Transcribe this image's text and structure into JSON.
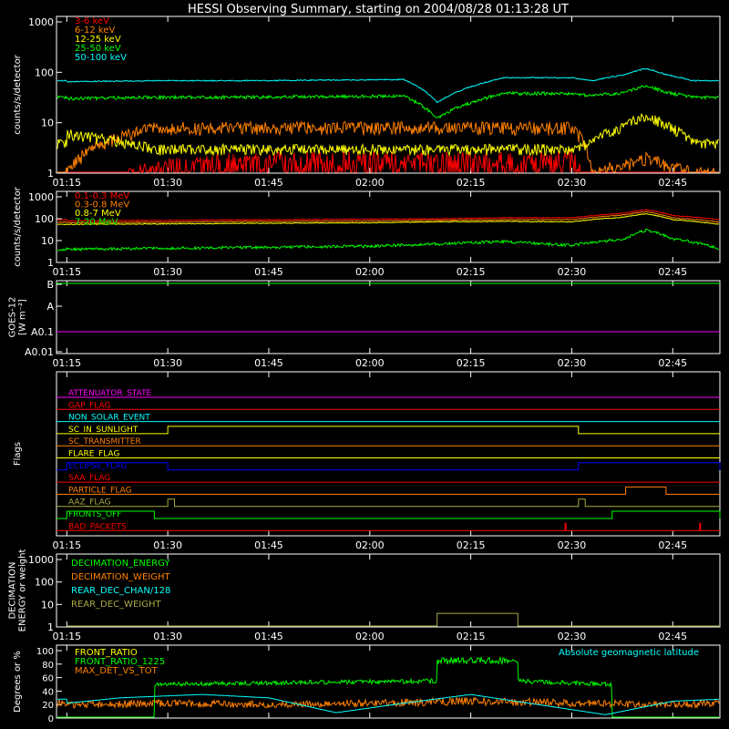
{
  "title": "HESSI Observing Summary, starting on 2004/08/28 01:13:28 UT",
  "time_ticks": [
    "01:15",
    "01:30",
    "01:45",
    "02:00",
    "02:15",
    "02:30",
    "02:45"
  ],
  "colors": {
    "red": "#ff0000",
    "orange": "#ff8000",
    "yellow": "#ffff00",
    "green": "#00ff00",
    "cyan": "#00ffff",
    "magenta": "#ff00ff",
    "blue": "#0000ff",
    "olive": "#aaaa44"
  },
  "chart_data": [
    {
      "type": "line",
      "name": "lightcurves-low",
      "ylabel": "counts/s/detector",
      "yscale": "log",
      "ylim": [
        1,
        1000
      ],
      "y_ticks": [
        "1000",
        "100",
        "10",
        "1"
      ],
      "series": [
        {
          "name": "3-6 keV",
          "color": "#ff0000",
          "x": [
            "01:15",
            "01:28",
            "01:40",
            "01:55",
            "02:05",
            "02:10",
            "02:20",
            "02:30",
            "02:33",
            "02:38",
            "02:41",
            "02:44",
            "02:48",
            "02:52"
          ],
          "y": [
            0,
            1,
            1.5,
            1.5,
            1.5,
            1.5,
            1.5,
            1.6,
            0,
            0,
            0,
            0,
            0,
            0
          ]
        },
        {
          "name": "6-12 keV",
          "color": "#ff8000",
          "x": [
            "01:15",
            "01:28",
            "01:40",
            "01:55",
            "02:05",
            "02:10",
            "02:20",
            "02:30",
            "02:33",
            "02:38",
            "02:41",
            "02:44",
            "02:48",
            "02:52"
          ],
          "y": [
            1,
            8,
            8,
            8,
            8,
            8,
            8,
            8,
            1,
            1.5,
            2,
            1.5,
            1,
            1
          ]
        },
        {
          "name": "12-25 keV",
          "color": "#ffff00",
          "x": [
            "01:15",
            "01:28",
            "01:40",
            "01:55",
            "02:05",
            "02:10",
            "02:20",
            "02:30",
            "02:33",
            "02:38",
            "02:41",
            "02:44",
            "02:48",
            "02:52"
          ],
          "y": [
            6,
            3,
            3,
            3,
            3,
            3,
            3,
            3,
            4,
            9,
            14,
            9,
            4,
            4
          ]
        },
        {
          "name": "25-50 keV",
          "color": "#00ff00",
          "x": [
            "01:15",
            "01:28",
            "01:40",
            "01:55",
            "02:05",
            "02:10",
            "02:20",
            "02:30",
            "02:33",
            "02:38",
            "02:41",
            "02:44",
            "02:48",
            "02:52"
          ],
          "y": [
            30,
            32,
            32,
            33,
            34,
            12,
            38,
            38,
            34,
            40,
            55,
            40,
            32,
            32
          ]
        },
        {
          "name": "50-100 keV",
          "color": "#00ffff",
          "x": [
            "01:15",
            "01:28",
            "01:40",
            "01:55",
            "02:05",
            "02:10",
            "02:20",
            "02:30",
            "02:33",
            "02:38",
            "02:41",
            "02:44",
            "02:48",
            "02:52"
          ],
          "y": [
            65,
            68,
            68,
            70,
            72,
            25,
            78,
            78,
            68,
            90,
            120,
            90,
            68,
            68
          ]
        }
      ]
    },
    {
      "type": "line",
      "name": "lightcurves-high",
      "ylabel": "counts/s/detector",
      "yscale": "log",
      "ylim": [
        1,
        1000
      ],
      "y_ticks": [
        "1000",
        "100",
        "10",
        "1"
      ],
      "series": [
        {
          "name": "0.1-0.3 MeV",
          "color": "#ff0000",
          "x": [
            "01:15",
            "01:30",
            "01:45",
            "02:00",
            "02:10",
            "02:20",
            "02:30",
            "02:38",
            "02:41",
            "02:45",
            "02:52"
          ],
          "y": [
            80,
            85,
            90,
            95,
            100,
            110,
            110,
            180,
            260,
            140,
            90
          ]
        },
        {
          "name": "0.3-0.8 MeV",
          "color": "#ff8000",
          "x": [
            "01:15",
            "01:30",
            "01:45",
            "02:00",
            "02:10",
            "02:20",
            "02:30",
            "02:38",
            "02:41",
            "02:45",
            "02:52"
          ],
          "y": [
            65,
            70,
            75,
            78,
            85,
            90,
            90,
            150,
            210,
            110,
            70
          ]
        },
        {
          "name": "0.8-7 MeV",
          "color": "#ffff00",
          "x": [
            "01:15",
            "01:30",
            "01:45",
            "02:00",
            "02:10",
            "02:20",
            "02:30",
            "02:38",
            "02:41",
            "02:45",
            "02:52"
          ],
          "y": [
            55,
            58,
            62,
            65,
            72,
            75,
            72,
            120,
            170,
            90,
            55
          ]
        },
        {
          "name": "7-20 MeV",
          "color": "#00ff00",
          "x": [
            "01:15",
            "01:30",
            "01:45",
            "02:00",
            "02:10",
            "02:20",
            "02:30",
            "02:38",
            "02:41",
            "02:45",
            "02:52"
          ],
          "y": [
            4,
            4.5,
            5,
            5.5,
            7,
            9,
            6,
            12,
            30,
            12,
            4
          ]
        }
      ]
    },
    {
      "type": "line",
      "name": "goes",
      "ylabel": "GOES-12 [W m⁻²]",
      "y_ticks": [
        "B",
        "A",
        "A0.1",
        "A0.01"
      ],
      "series": [
        {
          "name": "B level",
          "color": "#00ff00",
          "level": "B"
        },
        {
          "name": "A0.1 level",
          "color": "#ff00ff",
          "level": "A0.1"
        }
      ]
    },
    {
      "type": "line",
      "name": "flags",
      "ylabel": "Flags",
      "series": [
        {
          "name": "ATTENUATOR_STATE",
          "color": "#ff00ff",
          "on": []
        },
        {
          "name": "GAP_FLAG",
          "color": "#ff0000",
          "on": []
        },
        {
          "name": "NON_SOLAR_EVENT",
          "color": "#00ffff",
          "on": []
        },
        {
          "name": "SC_IN_SUNLIGHT",
          "color": "#ffff00",
          "on": [
            [
              "01:30",
              "02:31"
            ]
          ]
        },
        {
          "name": "SC_TRANSMITTER",
          "color": "#ff8000",
          "on": []
        },
        {
          "name": "FLARE_FLAG",
          "color": "#ffff00",
          "on": []
        },
        {
          "name": "ECLIPSE_FLAG",
          "color": "#0000ff",
          "on": [
            [
              "01:15",
              "01:30"
            ],
            [
              "02:31",
              "02:52"
            ]
          ]
        },
        {
          "name": "SAA_FLAG",
          "color": "#ff0000",
          "on": []
        },
        {
          "name": "PARTICLE_FLAG",
          "color": "#ff8000",
          "on": [
            [
              "02:38",
              "02:44"
            ]
          ]
        },
        {
          "name": "AAZ_FLAG",
          "color": "#aaaa44",
          "on": [
            [
              "01:30",
              "01:31"
            ],
            [
              "02:31",
              "02:32"
            ]
          ]
        },
        {
          "name": "FRONTS_OFF",
          "color": "#00ff00",
          "on": [
            [
              "01:15",
              "01:28"
            ],
            [
              "02:36",
              "02:52"
            ]
          ]
        },
        {
          "name": "BAD_PACKETS",
          "color": "#ff0000",
          "on": [
            [
              "02:29",
              "02:29"
            ],
            [
              "02:49",
              "02:49"
            ]
          ]
        }
      ]
    },
    {
      "type": "line",
      "name": "decimation",
      "ylabel": "DECIMATION ENERGY or weight",
      "yscale": "log",
      "ylim": [
        1,
        1000
      ],
      "y_ticks": [
        "1000",
        "100",
        "10",
        "1"
      ],
      "series": [
        {
          "name": "DECIMATION_ENERGY",
          "color": "#00ff00"
        },
        {
          "name": "DECIMATION_WEIGHT",
          "color": "#ff8000"
        },
        {
          "name": "REAR_DEC_CHAN/128",
          "color": "#00ffff"
        },
        {
          "name": "REAR_DEC_WEIGHT",
          "color": "#aaaa44",
          "x": [
            "01:15",
            "02:10",
            "02:10",
            "02:22",
            "02:22",
            "02:52"
          ],
          "y": [
            1,
            1,
            4,
            4,
            1,
            1
          ]
        }
      ]
    },
    {
      "type": "line",
      "name": "ratios",
      "ylabel": "Degrees or %",
      "ylim": [
        0,
        100
      ],
      "y_ticks": [
        "100",
        "80",
        "60",
        "40",
        "20",
        "0"
      ],
      "annotation": "Absolute geomagnetic latitude",
      "series": [
        {
          "name": "FRONT_RATIO",
          "color": "#ffff00"
        },
        {
          "name": "FRONT_RATIO_1225",
          "color": "#00ff00",
          "x": [
            "01:15",
            "01:28",
            "01:28",
            "02:10",
            "02:10",
            "02:22",
            "02:22",
            "02:36",
            "02:36",
            "02:52"
          ],
          "y": [
            0,
            0,
            50,
            55,
            85,
            85,
            55,
            50,
            0,
            0
          ]
        },
        {
          "name": "MAX_DET_VS_TOT",
          "color": "#ff8000",
          "x": [
            "01:15",
            "01:30",
            "01:45",
            "02:00",
            "02:15",
            "02:30",
            "02:45",
            "02:52"
          ],
          "y": [
            20,
            22,
            20,
            22,
            25,
            22,
            20,
            22
          ]
        },
        {
          "name": "Absolute geomagnetic latitude",
          "color": "#00ffff",
          "x": [
            "01:15",
            "01:23",
            "01:35",
            "01:45",
            "01:55",
            "02:05",
            "02:15",
            "02:25",
            "02:35",
            "02:45",
            "02:52"
          ],
          "y": [
            22,
            30,
            35,
            30,
            8,
            22,
            35,
            20,
            5,
            25,
            28
          ]
        }
      ]
    }
  ]
}
